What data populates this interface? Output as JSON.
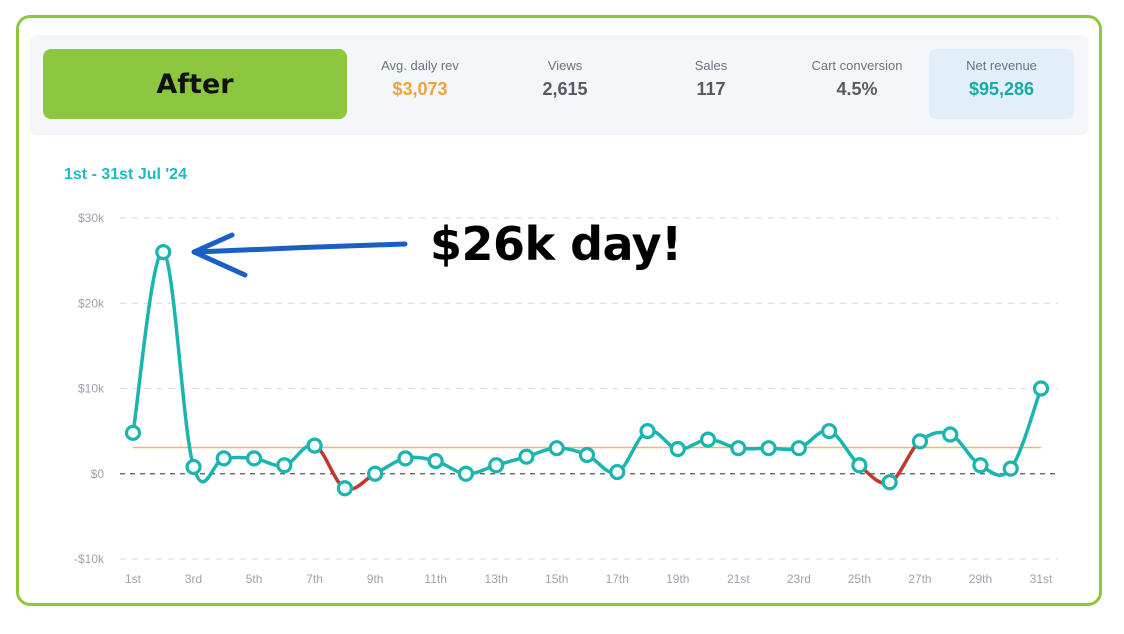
{
  "header": {
    "mode_label": "After",
    "stats": [
      {
        "label": "Avg. daily rev",
        "value": "$3,073",
        "color": "#f0a23a"
      },
      {
        "label": "Views",
        "value": "2,615",
        "color": "#555b63"
      },
      {
        "label": "Sales",
        "value": "117",
        "color": "#555b63"
      },
      {
        "label": "Cart conversion",
        "value": "4.5%",
        "color": "#555b63"
      },
      {
        "label": "Net revenue",
        "value": "$95,286",
        "color": "#1aa9a3"
      }
    ]
  },
  "date_range": "1st - 31st Jul '24",
  "annotation": "$26k day!",
  "colors": {
    "line": "#1bb5b0",
    "negative_segment": "#c0392b",
    "average_line": "#f2b36b",
    "zero_line": "#555555",
    "grid": "#d6d9de",
    "arrow": "#1a5fc4",
    "frame": "#8ec73e"
  },
  "chart_data": {
    "type": "line",
    "title": "",
    "xlabel": "",
    "ylabel": "",
    "ylim": [
      -10000,
      30000
    ],
    "y_ticks": [
      -10000,
      0,
      10000,
      20000,
      30000
    ],
    "y_tick_labels": [
      "-$10k",
      "$0",
      "$10k",
      "$20k",
      "$30k"
    ],
    "x_tick_labels": [
      "1st",
      "3rd",
      "5th",
      "7th",
      "9th",
      "11th",
      "13th",
      "15th",
      "17th",
      "19th",
      "21st",
      "23rd",
      "25th",
      "27th",
      "29th",
      "31st"
    ],
    "grid": true,
    "average": 3073,
    "series": [
      {
        "days": [
          1,
          2,
          3,
          4,
          5,
          6,
          7,
          8,
          9,
          10,
          11,
          12,
          13,
          14,
          15,
          16,
          17,
          18,
          19,
          20,
          21,
          22,
          23,
          24,
          25,
          26,
          27,
          28,
          29,
          30,
          31
        ],
        "values": [
          4800,
          26000,
          800,
          1800,
          1800,
          1000,
          3300,
          -1700,
          0,
          1800,
          1500,
          0,
          1000,
          2000,
          3000,
          2200,
          200,
          5000,
          2900,
          4000,
          3000,
          3000,
          3000,
          5000,
          1000,
          -1000,
          3800,
          4600,
          1000,
          600,
          10000
        ]
      }
    ]
  }
}
